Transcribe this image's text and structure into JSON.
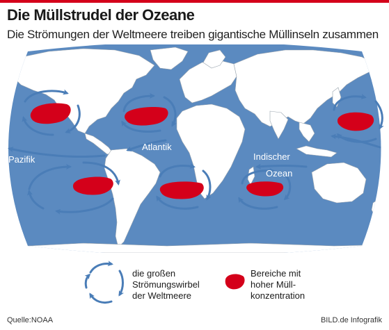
{
  "header": {
    "title": "Die Müllstrudel der Ozeane",
    "subtitle": "Die Strömungen der Weltmeere treiben gigantische Müllinseln zusammen"
  },
  "map": {
    "labels": {
      "pacific": "Pazifik",
      "atlantic": "Atlantik",
      "indian_1": "Indischer",
      "indian_2": "Ozean"
    },
    "colors": {
      "ocean": "#5b8ac0",
      "land": "#ffffff",
      "borders": "#9aa4ae",
      "current_arrows": "#4a7db7",
      "garbage_patch": "#d4001a"
    }
  },
  "legend": {
    "currents": {
      "icon": "circular-arrows-icon",
      "line1": "die großen",
      "line2": "Strömungswirbel",
      "line3": "der Weltmeere"
    },
    "patches": {
      "icon": "red-patch-icon",
      "line1": "Bereiche mit",
      "line2": "hoher Müll-",
      "line3": "konzentration"
    }
  },
  "footer": {
    "source": "Quelle:NOAA",
    "credit": "BILD.de Infografik"
  }
}
